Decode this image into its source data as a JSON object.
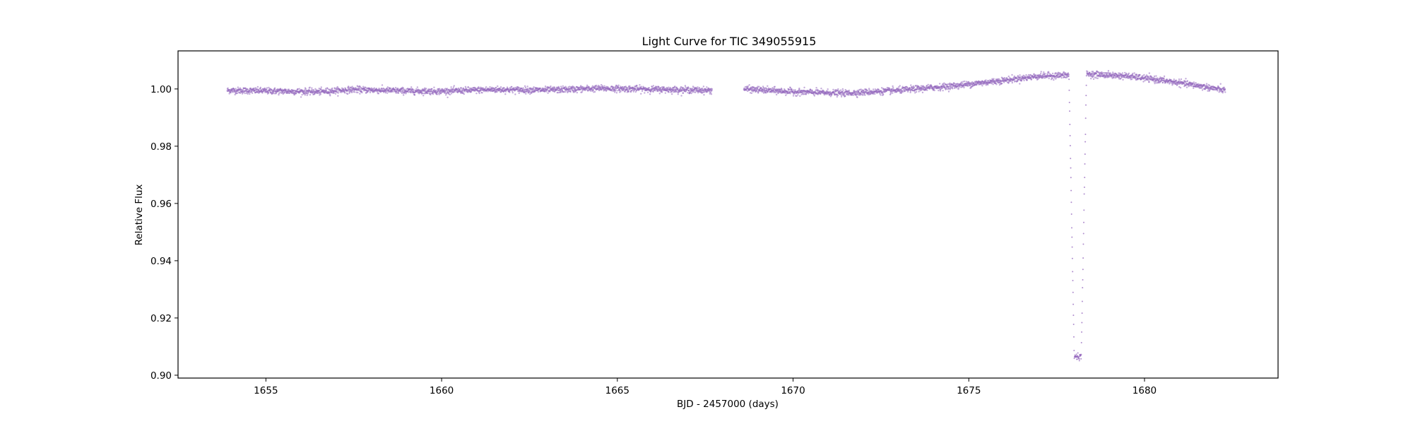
{
  "chart_data": {
    "type": "scatter",
    "title": "Light Curve for TIC 349055915",
    "xlabel": "BJD - 2457000 (days)",
    "ylabel": "Relative Flux",
    "xlim": [
      1652.5,
      1683.8
    ],
    "ylim": [
      0.899,
      1.0133
    ],
    "xticks": [
      1655,
      1660,
      1665,
      1670,
      1675,
      1680
    ],
    "xtick_labels": [
      "1655",
      "1660",
      "1665",
      "1670",
      "1675",
      "1680"
    ],
    "yticks": [
      0.9,
      0.92,
      0.94,
      0.96,
      0.98,
      1.0
    ],
    "ytick_labels": [
      "0.90",
      "0.92",
      "0.94",
      "0.96",
      "0.98",
      "1.00"
    ],
    "grid": false,
    "legend": "none",
    "marker_color": "#9467bd",
    "data_range": {
      "x_start": 1653.9,
      "x_end": 1682.3,
      "gap": [
        1667.7,
        1668.6
      ]
    },
    "trend_points": [
      {
        "x": 1653.9,
        "y": 0.9995
      },
      {
        "x": 1655.0,
        "y": 0.9993
      },
      {
        "x": 1656.5,
        "y": 0.999
      },
      {
        "x": 1657.5,
        "y": 0.9998
      },
      {
        "x": 1659.0,
        "y": 0.9993
      },
      {
        "x": 1660.0,
        "y": 0.9992
      },
      {
        "x": 1661.5,
        "y": 0.9998
      },
      {
        "x": 1663.0,
        "y": 0.9996
      },
      {
        "x": 1664.5,
        "y": 1.0002
      },
      {
        "x": 1665.5,
        "y": 1.0
      },
      {
        "x": 1667.7,
        "y": 0.9995
      },
      {
        "x": 1668.6,
        "y": 1.0
      },
      {
        "x": 1670.0,
        "y": 0.999
      },
      {
        "x": 1671.5,
        "y": 0.9985
      },
      {
        "x": 1673.0,
        "y": 0.9995
      },
      {
        "x": 1674.5,
        "y": 1.001
      },
      {
        "x": 1676.0,
        "y": 1.003
      },
      {
        "x": 1677.0,
        "y": 1.0045
      },
      {
        "x": 1677.85,
        "y": 1.0048
      },
      {
        "x": 1678.4,
        "y": 1.0052
      },
      {
        "x": 1679.5,
        "y": 1.0045
      },
      {
        "x": 1680.5,
        "y": 1.003
      },
      {
        "x": 1681.5,
        "y": 1.0012
      },
      {
        "x": 1682.3,
        "y": 0.9995
      }
    ],
    "transit": {
      "ingress_start": 1677.85,
      "bottom_start": 1678.0,
      "bottom_end": 1678.2,
      "egress_end": 1678.35,
      "depth_flux": 0.9065
    }
  }
}
